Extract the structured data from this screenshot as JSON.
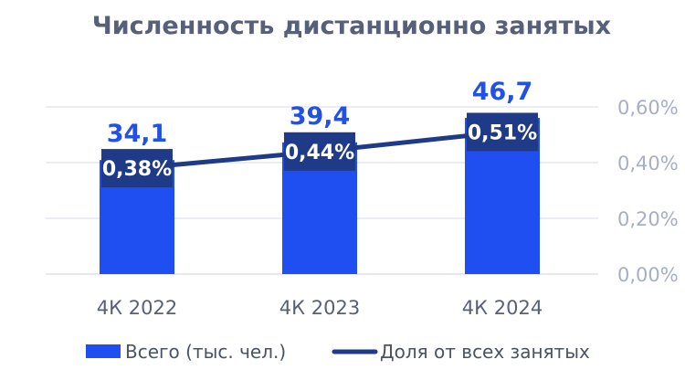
{
  "chart_data": {
    "type": "bar",
    "title": "Численность дистанционно занятых",
    "categories": [
      "4К 2022",
      "4К 2023",
      "4К 2024"
    ],
    "series": [
      {
        "name": "Всего (тыс. чел.)",
        "kind": "bar",
        "axis": "left",
        "values": [
          34.1,
          39.4,
          46.7
        ],
        "labels": [
          "34,1",
          "39,4",
          "46,7"
        ],
        "color": "#1f4ff0",
        "label_color": "#2251e8"
      },
      {
        "name": "Доля от всех занятых",
        "kind": "line",
        "axis": "right",
        "values": [
          0.38,
          0.44,
          0.51
        ],
        "labels": [
          "0,38%",
          "0,44%",
          "0,51%"
        ],
        "color": "#1f3a87"
      }
    ],
    "y2_ticks": [
      "0,00%",
      "0,20%",
      "0,40%",
      "0,60%"
    ],
    "y2_tick_values": [
      0.0,
      0.2,
      0.4,
      0.6
    ],
    "y2lim": [
      0,
      0.6
    ],
    "ylim": [
      0,
      50
    ],
    "grid": true,
    "legend_position": "bottom",
    "colors": {
      "title": "#57607a",
      "tick": "#a6aec8",
      "grid": "#dde2f0",
      "bar": "#1f4ff0",
      "line": "#1f3a87",
      "label_bg": "#1f3a87"
    }
  }
}
